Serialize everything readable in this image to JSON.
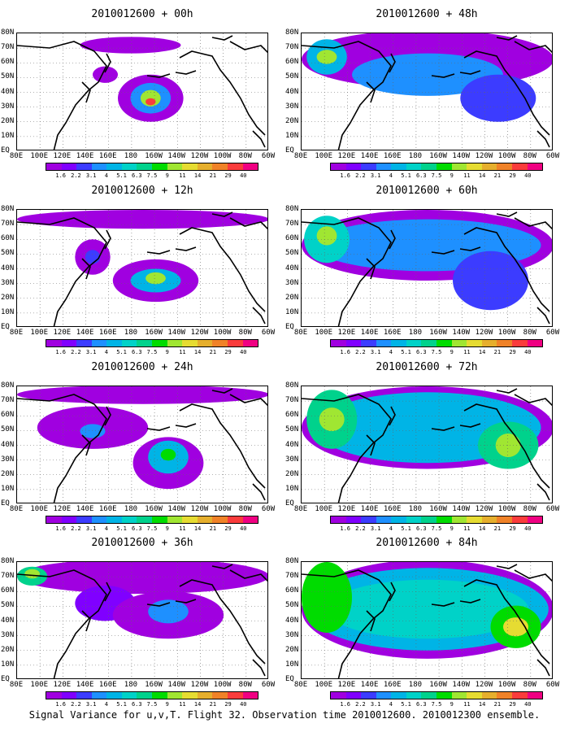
{
  "colorbar": {
    "colors": [
      "#a000e0",
      "#8000ff",
      "#3c3cff",
      "#1e90ff",
      "#00b4e6",
      "#00d2c8",
      "#00d28c",
      "#00dc00",
      "#a0e632",
      "#e6dc32",
      "#e6af2d",
      "#f08228",
      "#fa3c3c",
      "#f00082"
    ],
    "labels": [
      "1.6",
      "2.2",
      "3.1",
      "4",
      "5.1",
      "6.3",
      "7.5",
      "9",
      "11",
      "14",
      "21",
      "29",
      "40"
    ]
  },
  "axes": {
    "y_labels": [
      "80N",
      "70N",
      "60N",
      "50N",
      "40N",
      "30N",
      "20N",
      "10N",
      "EQ"
    ],
    "x_labels": [
      "80E",
      "100E",
      "120E",
      "140E",
      "160E",
      "180",
      "160W",
      "140W",
      "120W",
      "100W",
      "80W",
      "60W"
    ]
  },
  "panels": [
    {
      "title": "2010012600 + 00h",
      "col": 0,
      "row": 0,
      "level": 0
    },
    {
      "title": "2010012600 + 12h",
      "col": 0,
      "row": 1,
      "level": 1
    },
    {
      "title": "2010012600 + 24h",
      "col": 0,
      "row": 2,
      "level": 2
    },
    {
      "title": "2010012600 + 36h",
      "col": 0,
      "row": 3,
      "level": 3
    },
    {
      "title": "2010012600 + 48h",
      "col": 1,
      "row": 0,
      "level": 4
    },
    {
      "title": "2010012600 + 60h",
      "col": 1,
      "row": 1,
      "level": 5
    },
    {
      "title": "2010012600 + 72h",
      "col": 1,
      "row": 2,
      "level": 6
    },
    {
      "title": "2010012600 + 84h",
      "col": 1,
      "row": 3,
      "level": 7
    }
  ],
  "caption": "Signal Variance for u,v,T. Flight 32. Observation time 2010012600. 2010012300 ensemble."
}
